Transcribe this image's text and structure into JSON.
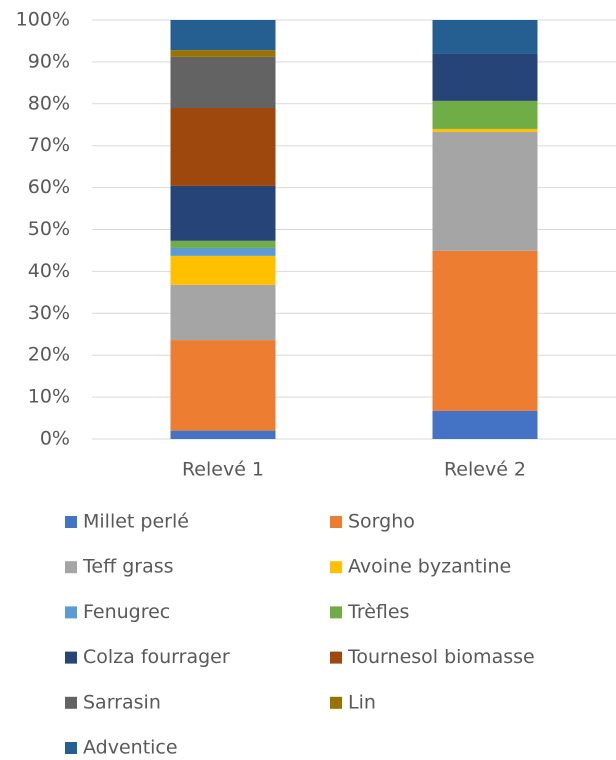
{
  "chart_data": {
    "type": "stacked_bar",
    "categories": [
      "Relevé 1",
      "Relevé 2"
    ],
    "series": [
      {
        "name": "Millet perlé",
        "color": "#4472c4",
        "values": [
          2,
          6.7
        ]
      },
      {
        "name": "Sorgho",
        "color": "#ed7d31",
        "values": [
          21.6,
          38.2
        ]
      },
      {
        "name": "Teff grass",
        "color": "#a5a5a5",
        "values": [
          13.2,
          28.4
        ]
      },
      {
        "name": "Avoine byzantine",
        "color": "#ffc000",
        "values": [
          6.9,
          0.7
        ]
      },
      {
        "name": "Fenugrec",
        "color": "#5b9bd5",
        "values": [
          1.9,
          0
        ]
      },
      {
        "name": "Trèfles",
        "color": "#70ad47",
        "values": [
          1.7,
          6.7
        ]
      },
      {
        "name": "Colza fourrager",
        "color": "#264478",
        "values": [
          13.1,
          11.2
        ]
      },
      {
        "name": "Tournesol biomasse",
        "color": "#9e480e",
        "values": [
          18.6,
          0
        ]
      },
      {
        "name": "Sarrasin",
        "color": "#636363",
        "values": [
          12.2,
          0
        ]
      },
      {
        "name": "Lin",
        "color": "#997300",
        "values": [
          1.6,
          0
        ]
      },
      {
        "name": "Adventice",
        "color": "#255e91",
        "values": [
          7.2,
          8.1
        ]
      }
    ],
    "ylim": [
      0,
      100
    ],
    "yticks": [
      {
        "value": 0,
        "label": "0%"
      },
      {
        "value": 10,
        "label": "10%"
      },
      {
        "value": 20,
        "label": "20%"
      },
      {
        "value": 30,
        "label": "30%"
      },
      {
        "value": 40,
        "label": "40%"
      },
      {
        "value": 50,
        "label": "50%"
      },
      {
        "value": 60,
        "label": "60%"
      },
      {
        "value": 70,
        "label": "70%"
      },
      {
        "value": 80,
        "label": "80%"
      },
      {
        "value": 90,
        "label": "90%"
      },
      {
        "value": 100,
        "label": "100%"
      }
    ],
    "grid": true,
    "legend": "bottom"
  }
}
